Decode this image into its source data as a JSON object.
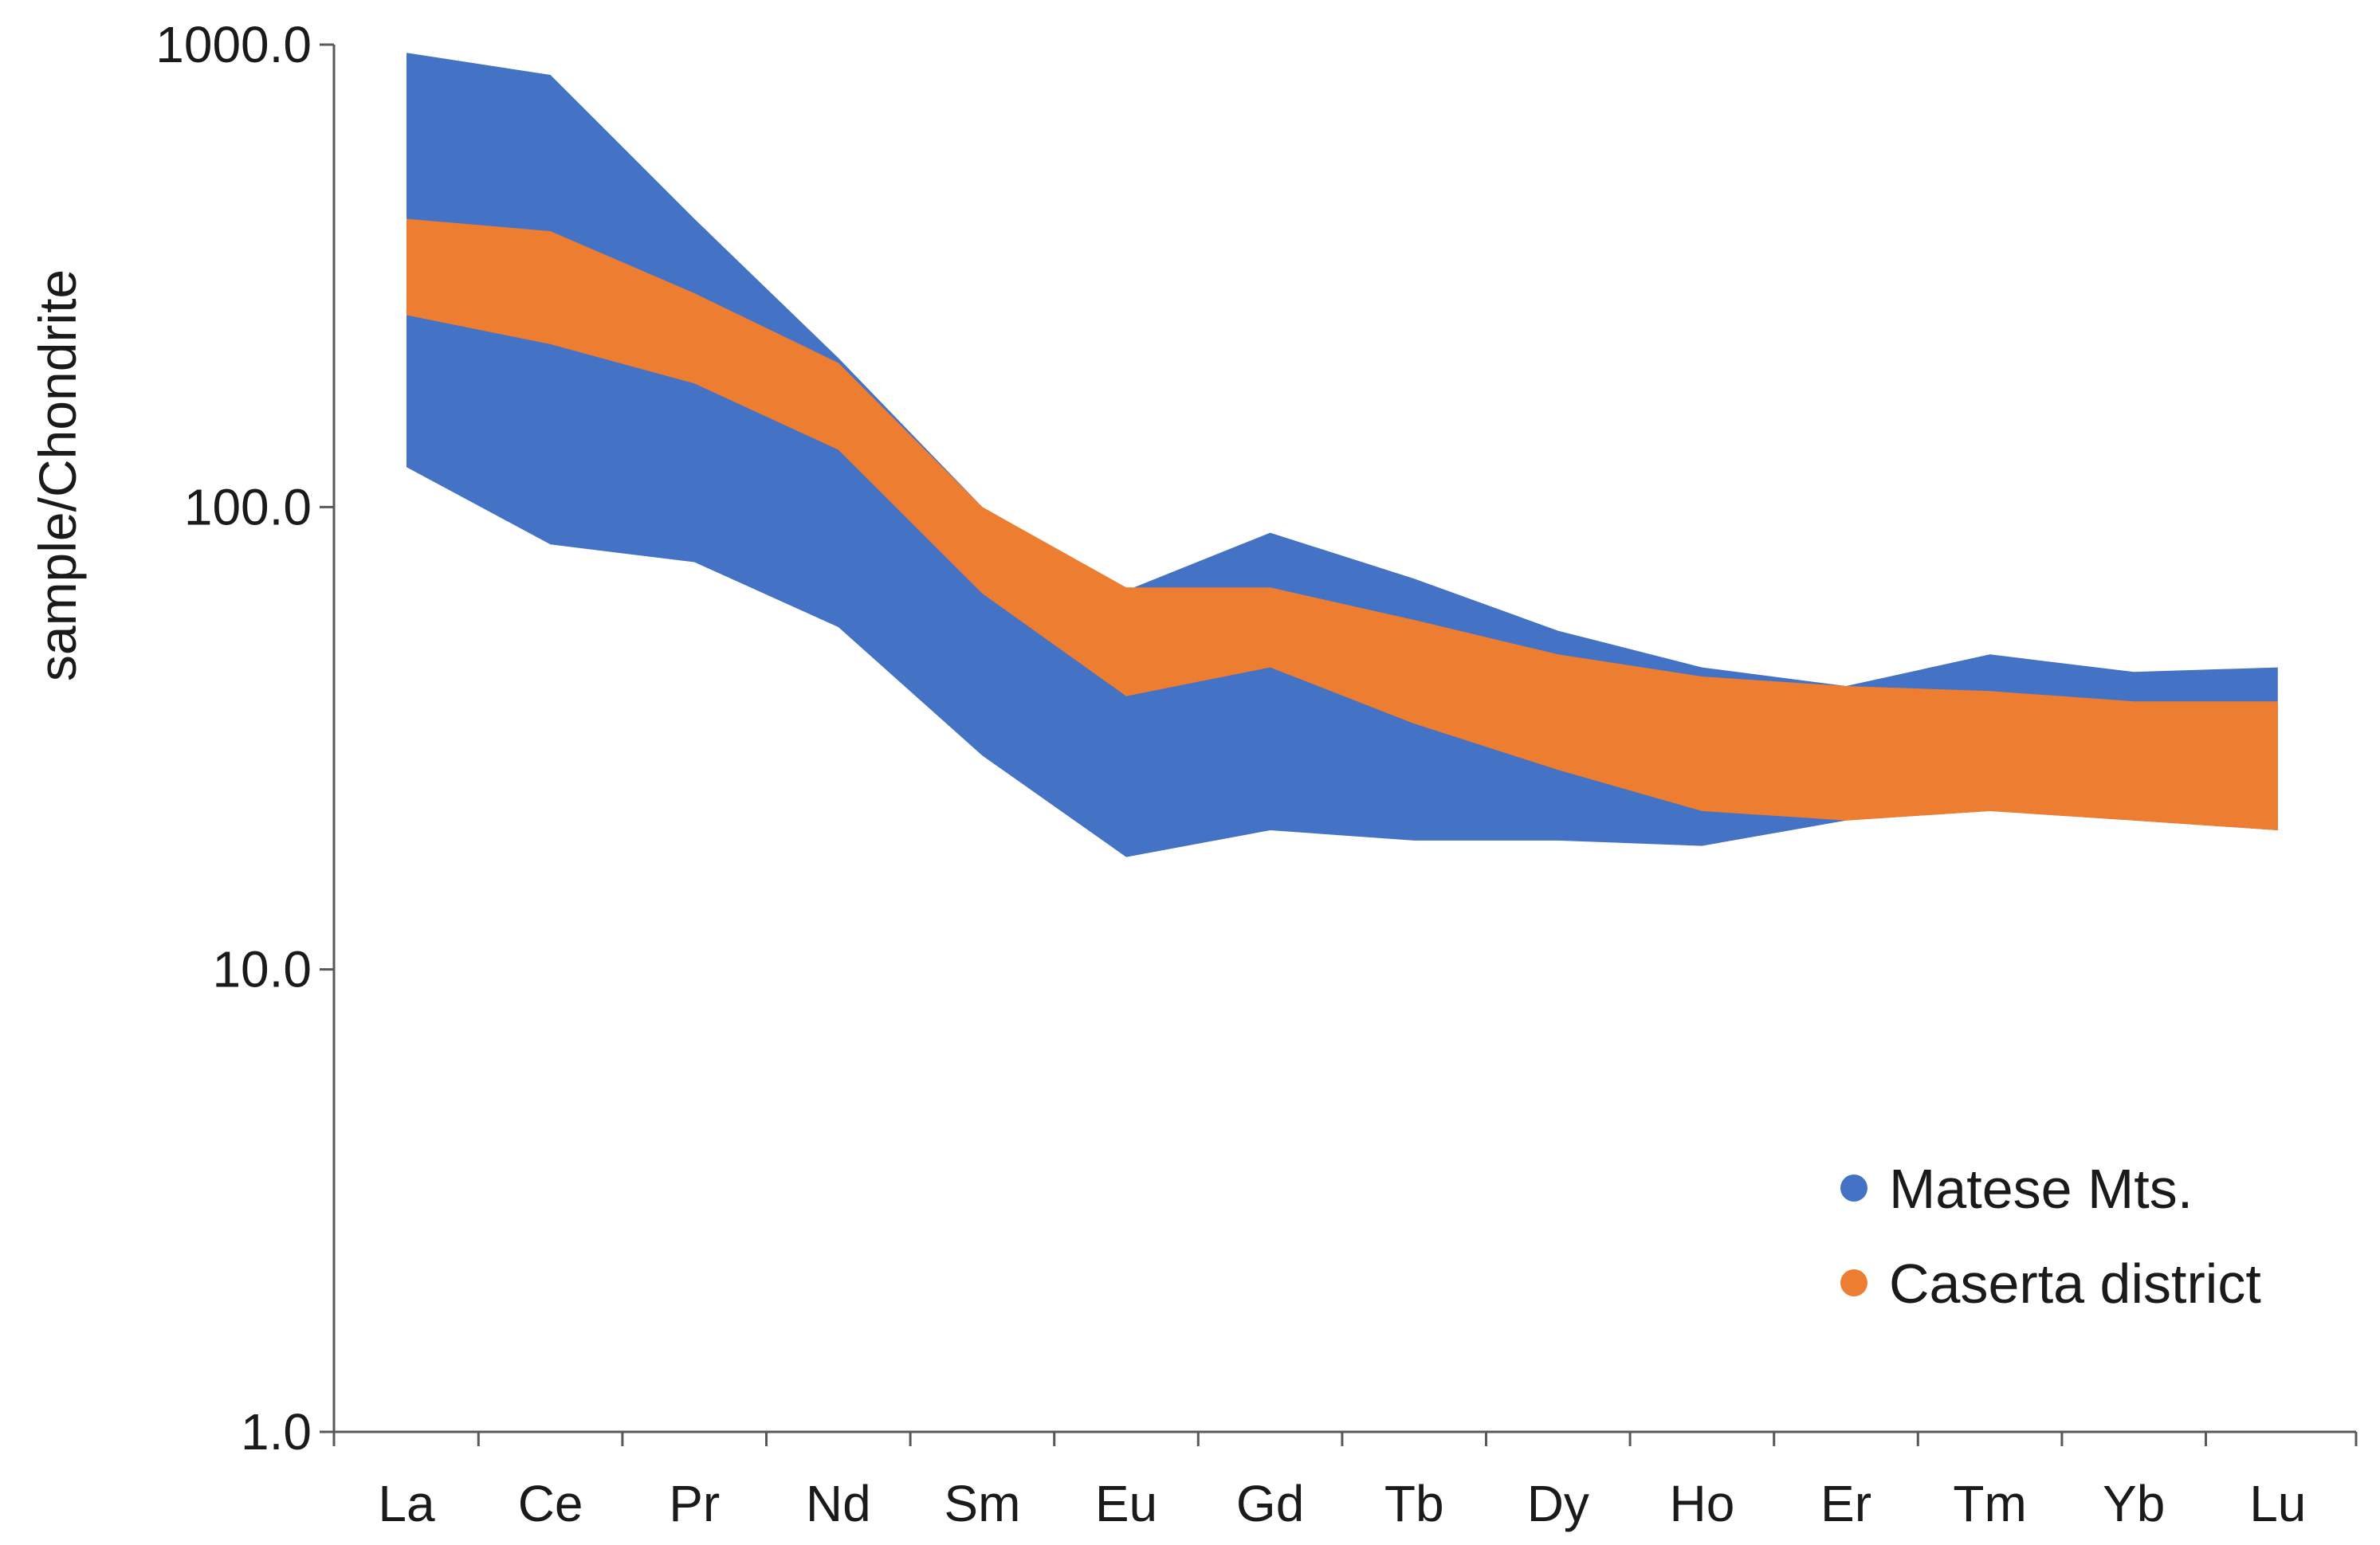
{
  "chart_data": {
    "type": "area",
    "scale": "log",
    "title": "",
    "xlabel": "",
    "ylabel": "sample/Chondrite",
    "ylim": [
      1,
      1000
    ],
    "yticks": [
      1,
      10,
      100,
      1000
    ],
    "ytick_labels": [
      "1.0",
      "10.0",
      "100.0",
      "1000.0"
    ],
    "categories": [
      "La",
      "Ce",
      "Pr",
      "Nd",
      "Sm",
      "Eu",
      "Gd",
      "Tb",
      "Dy",
      "Ho",
      "Er",
      "Tm",
      "Yb",
      "Lu"
    ],
    "series": [
      {
        "name": "Matese Mts.",
        "color": "#4472C4",
        "upper": [
          960,
          860,
          420,
          210,
          100,
          66,
          88,
          70,
          54,
          45,
          41,
          48,
          44,
          45
        ],
        "lower": [
          122,
          83,
          76,
          55,
          29,
          17.5,
          20,
          19,
          19,
          18.5,
          21,
          22,
          21,
          20
        ]
      },
      {
        "name": "Caserta district",
        "color": "#ED7D31",
        "upper": [
          420,
          395,
          290,
          205,
          100,
          67,
          67,
          57,
          48,
          43,
          41,
          40,
          38,
          38
        ],
        "lower": [
          260,
          225,
          185,
          133,
          65,
          39,
          45,
          34,
          27,
          22,
          21,
          22,
          21,
          20
        ]
      }
    ],
    "legend": {
      "position": "bottom-right",
      "entries": [
        "Matese Mts.",
        "Caserta district"
      ]
    },
    "grid": false
  }
}
